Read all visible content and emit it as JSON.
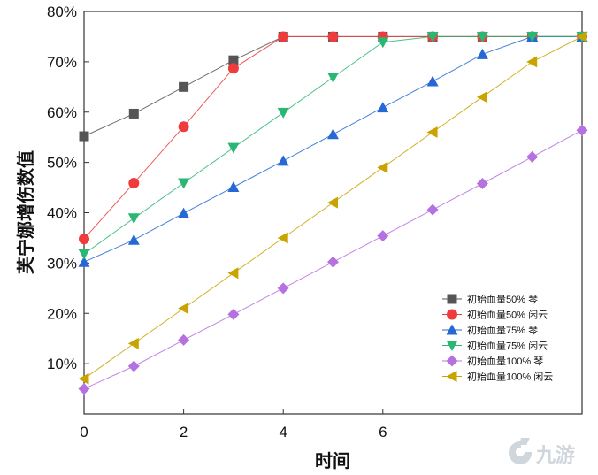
{
  "chart_data": {
    "type": "line",
    "xlabel": "时间",
    "ylabel": "芙宁娜增伤数值",
    "xlim": [
      0,
      10
    ],
    "ylim": [
      0,
      80
    ],
    "x_ticks": [
      0,
      2,
      4,
      6
    ],
    "y_ticks": [
      10,
      20,
      30,
      40,
      50,
      60,
      70,
      80
    ],
    "y_tick_labels": [
      "10%",
      "20%",
      "30%",
      "40%",
      "50%",
      "60%",
      "70%",
      "80%"
    ],
    "x_tick_labels": [
      "0",
      "2",
      "4",
      "6"
    ],
    "grid": false,
    "legend_position": "bottom-right",
    "x": [
      0,
      1,
      2,
      3,
      4,
      5,
      6,
      7,
      8,
      9,
      10
    ],
    "series": [
      {
        "name": "初始血量50% 琴",
        "color": "#555555",
        "marker": "square",
        "values": [
          55.2,
          59.7,
          65.0,
          70.3,
          75,
          75,
          75,
          75,
          75,
          75,
          75
        ]
      },
      {
        "name": "初始血量50% 闲云",
        "color": "#ef3b3b",
        "marker": "circle",
        "values": [
          34.8,
          45.9,
          57.1,
          68.7,
          75,
          75,
          75,
          75,
          75,
          75,
          75
        ]
      },
      {
        "name": "初始血量75% 琴",
        "color": "#2568d6",
        "marker": "triangle-up",
        "values": [
          30.2,
          34.6,
          39.9,
          45.1,
          50.3,
          55.6,
          60.9,
          66.1,
          71.5,
          75,
          75
        ]
      },
      {
        "name": "初始血量75% 闲云",
        "color": "#2ab673",
        "marker": "triangle-down",
        "values": [
          31.8,
          38.9,
          45.9,
          52.9,
          59.9,
          66.9,
          73.9,
          75,
          75,
          75,
          75
        ]
      },
      {
        "name": "初始血量100% 琴",
        "color": "#b571e0",
        "marker": "diamond",
        "values": [
          5.0,
          9.5,
          14.7,
          19.8,
          25.0,
          30.2,
          35.4,
          40.6,
          45.8,
          51.1,
          56.4
        ]
      },
      {
        "name": "初始血量100% 闲云",
        "color": "#c9a400",
        "marker": "triangle-left",
        "values": [
          7.0,
          14.0,
          21.0,
          28.0,
          35.0,
          42.0,
          49.0,
          56.0,
          63.0,
          70.0,
          75.0
        ]
      }
    ]
  },
  "watermark": {
    "brand_icon": "jiuyou-logo-icon",
    "text": "九游"
  }
}
